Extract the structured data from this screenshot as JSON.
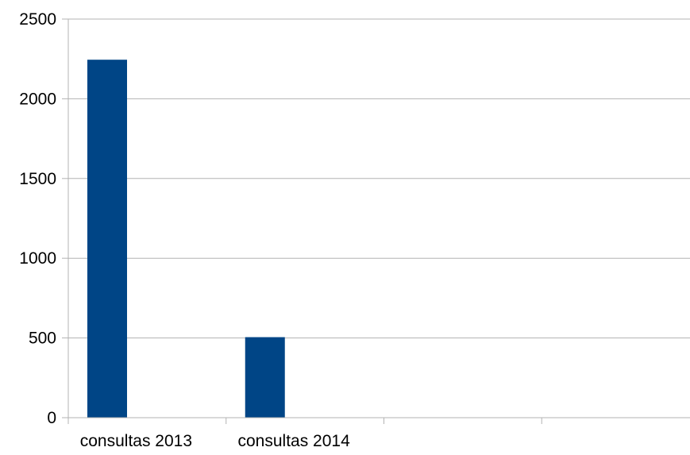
{
  "chart_data": {
    "type": "bar",
    "categories": [
      "consultas 2013",
      "consultas 2014",
      "",
      ""
    ],
    "values": [
      2245,
      505,
      null,
      null
    ],
    "title": "",
    "xlabel": "",
    "ylabel": "",
    "ylim": [
      0,
      2500
    ],
    "yticks": [
      "0",
      "500",
      "1000",
      "1500",
      "2000",
      "2500"
    ],
    "grid": true,
    "legend": "none",
    "bar_color": "#004586",
    "grid_color": "#b3b3b3"
  }
}
